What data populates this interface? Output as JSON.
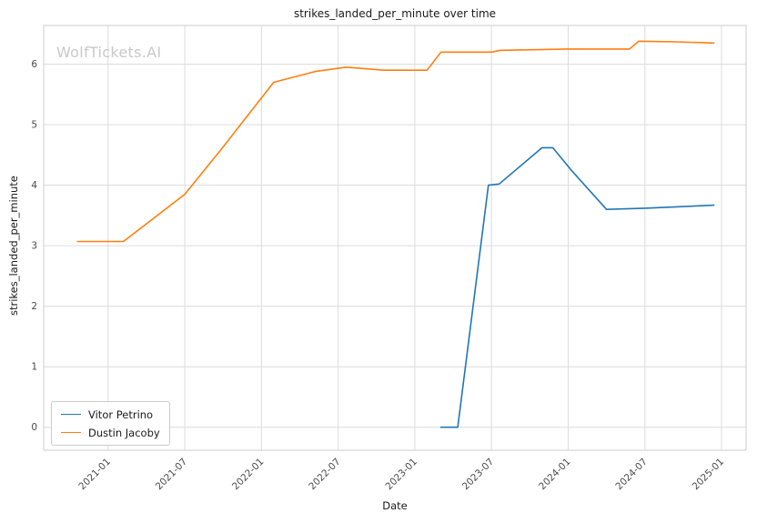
{
  "watermark": "WolfTickets.AI",
  "chart_data": {
    "type": "line",
    "title": "strikes_landed_per_minute over time",
    "xlabel": "Date",
    "ylabel": "strikes_landed_per_minute",
    "xlim": [
      2020.58,
      2025.16
    ],
    "ylim": [
      -0.38,
      6.64
    ],
    "grid": true,
    "grid_color": "#dcdcdc",
    "border_color": "#cccccc",
    "legend_position": "lower left",
    "y_ticks": [
      0,
      1,
      2,
      3,
      4,
      5,
      6
    ],
    "x_ticks": [
      {
        "v": 2021.0,
        "label": "2021-01"
      },
      {
        "v": 2021.5,
        "label": "2021-07"
      },
      {
        "v": 2022.0,
        "label": "2022-01"
      },
      {
        "v": 2022.5,
        "label": "2022-07"
      },
      {
        "v": 2023.0,
        "label": "2023-01"
      },
      {
        "v": 2023.5,
        "label": "2023-07"
      },
      {
        "v": 2024.0,
        "label": "2024-01"
      },
      {
        "v": 2024.5,
        "label": "2024-07"
      },
      {
        "v": 2025.0,
        "label": "2025-01"
      }
    ],
    "series": [
      {
        "name": "Vitor Petrino",
        "color": "#1f77b4",
        "points": [
          [
            2023.17,
            0.0
          ],
          [
            2023.28,
            0.0
          ],
          [
            2023.48,
            4.0
          ],
          [
            2023.55,
            4.02
          ],
          [
            2023.83,
            4.62
          ],
          [
            2023.9,
            4.62
          ],
          [
            2024.02,
            4.25
          ],
          [
            2024.25,
            3.6
          ],
          [
            2024.5,
            3.62
          ],
          [
            2024.95,
            3.67
          ]
        ]
      },
      {
        "name": "Dustin Jacoby",
        "color": "#ff7f0e",
        "points": [
          [
            2020.8,
            3.07
          ],
          [
            2021.1,
            3.07
          ],
          [
            2021.5,
            3.85
          ],
          [
            2021.74,
            4.6
          ],
          [
            2022.08,
            5.7
          ],
          [
            2022.35,
            5.88
          ],
          [
            2022.55,
            5.95
          ],
          [
            2022.8,
            5.9
          ],
          [
            2023.08,
            5.9
          ],
          [
            2023.17,
            6.2
          ],
          [
            2023.5,
            6.2
          ],
          [
            2023.56,
            6.23
          ],
          [
            2024.0,
            6.25
          ],
          [
            2024.4,
            6.25
          ],
          [
            2024.46,
            6.38
          ],
          [
            2024.7,
            6.37
          ],
          [
            2024.95,
            6.35
          ]
        ]
      }
    ]
  }
}
